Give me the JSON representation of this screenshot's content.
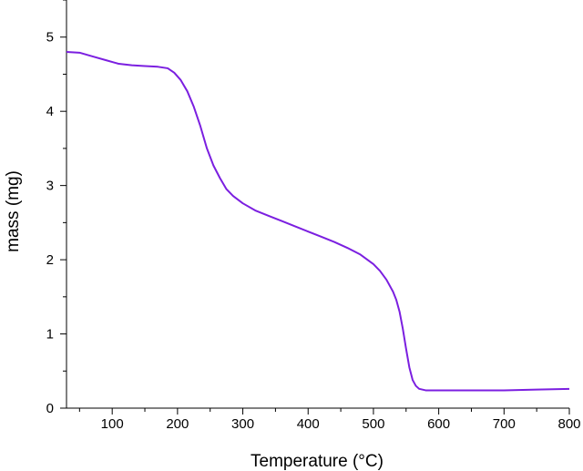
{
  "chart_data": {
    "type": "line",
    "title": "",
    "xlabel": "Temperature (°C)",
    "ylabel": "mass (mg)",
    "xlim": [
      30,
      800
    ],
    "ylim": [
      0,
      5.5
    ],
    "x_ticks": [
      100,
      200,
      300,
      400,
      500,
      600,
      700,
      800
    ],
    "y_ticks": [
      0,
      1,
      2,
      3,
      4,
      5
    ],
    "grid": false,
    "legend": "none",
    "series": [
      {
        "color": "#7b1fe0",
        "x": [
          30,
          50,
          70,
          90,
          110,
          130,
          150,
          170,
          185,
          195,
          205,
          215,
          225,
          235,
          245,
          255,
          265,
          275,
          285,
          300,
          320,
          340,
          360,
          380,
          400,
          420,
          440,
          460,
          480,
          500,
          510,
          520,
          530,
          535,
          540,
          545,
          550,
          555,
          560,
          565,
          570,
          580,
          590,
          600,
          650,
          700,
          750,
          800
        ],
        "y": [
          4.8,
          4.79,
          4.74,
          4.69,
          4.64,
          4.62,
          4.61,
          4.6,
          4.58,
          4.52,
          4.42,
          4.27,
          4.06,
          3.8,
          3.5,
          3.27,
          3.1,
          2.95,
          2.86,
          2.76,
          2.66,
          2.59,
          2.52,
          2.45,
          2.38,
          2.31,
          2.24,
          2.16,
          2.07,
          1.94,
          1.85,
          1.73,
          1.57,
          1.46,
          1.3,
          1.07,
          0.8,
          0.55,
          0.38,
          0.3,
          0.26,
          0.24,
          0.24,
          0.24,
          0.24,
          0.24,
          0.25,
          0.26
        ]
      }
    ]
  }
}
